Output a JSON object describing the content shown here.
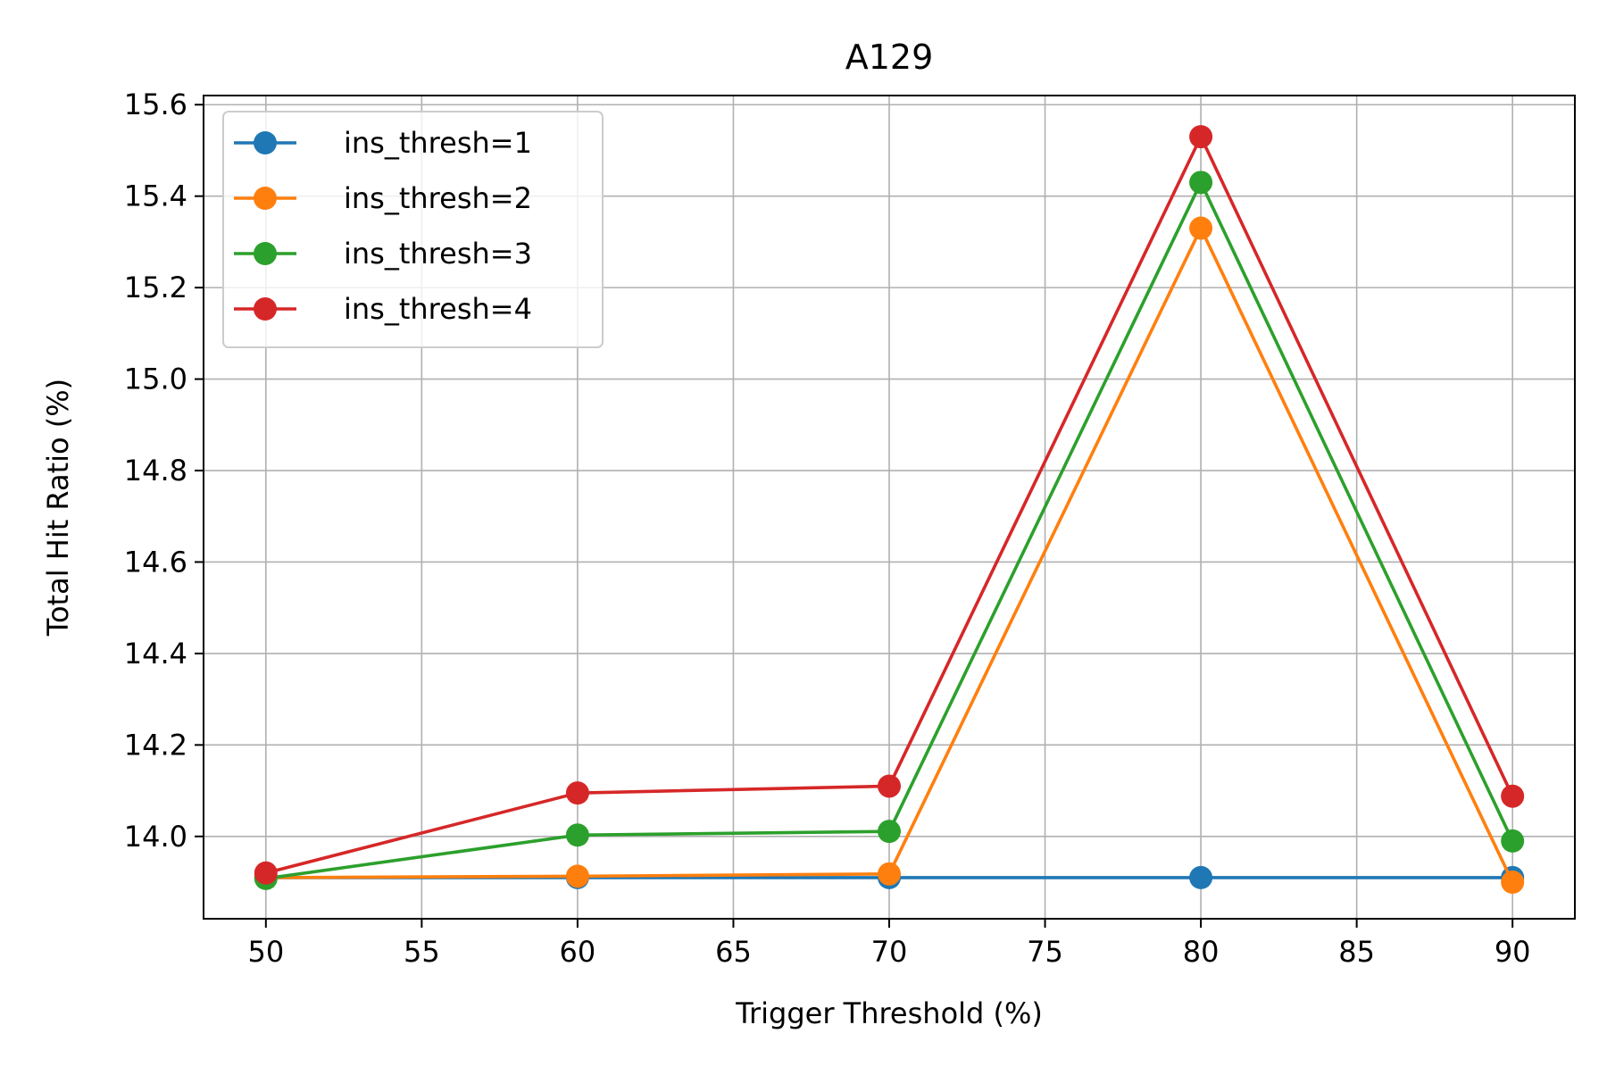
{
  "chart_data": {
    "type": "line",
    "title": "A129",
    "xlabel": "Trigger Threshold (%)",
    "ylabel": "Total Hit Ratio (%)",
    "xlim": [
      48,
      92
    ],
    "ylim": [
      13.82,
      15.62
    ],
    "x_ticks": [
      50,
      55,
      60,
      65,
      70,
      75,
      80,
      85,
      90
    ],
    "y_ticks": [
      14.0,
      14.2,
      14.4,
      14.6,
      14.8,
      15.0,
      15.2,
      15.4,
      15.6
    ],
    "x_tick_labels": [
      "50",
      "55",
      "60",
      "65",
      "70",
      "75",
      "80",
      "85",
      "90"
    ],
    "y_tick_labels": [
      "14.0",
      "14.2",
      "14.4",
      "14.6",
      "14.8",
      "15.0",
      "15.2",
      "15.4",
      "15.6"
    ],
    "grid": true,
    "legend_position": "top-left",
    "x": [
      50,
      60,
      70,
      80,
      90
    ],
    "series": [
      {
        "name": "ins_thresh=1",
        "color": "#1f77b4",
        "values": [
          13.91,
          13.91,
          13.91,
          13.91,
          13.91
        ]
      },
      {
        "name": "ins_thresh=2",
        "color": "#ff7f0e",
        "values": [
          13.91,
          13.913,
          13.918,
          15.33,
          13.9
        ]
      },
      {
        "name": "ins_thresh=3",
        "color": "#2ca02c",
        "values": [
          13.908,
          14.003,
          14.011,
          15.43,
          13.99
        ]
      },
      {
        "name": "ins_thresh=4",
        "color": "#d62728",
        "values": [
          13.92,
          14.095,
          14.11,
          15.53,
          14.088
        ]
      }
    ]
  }
}
